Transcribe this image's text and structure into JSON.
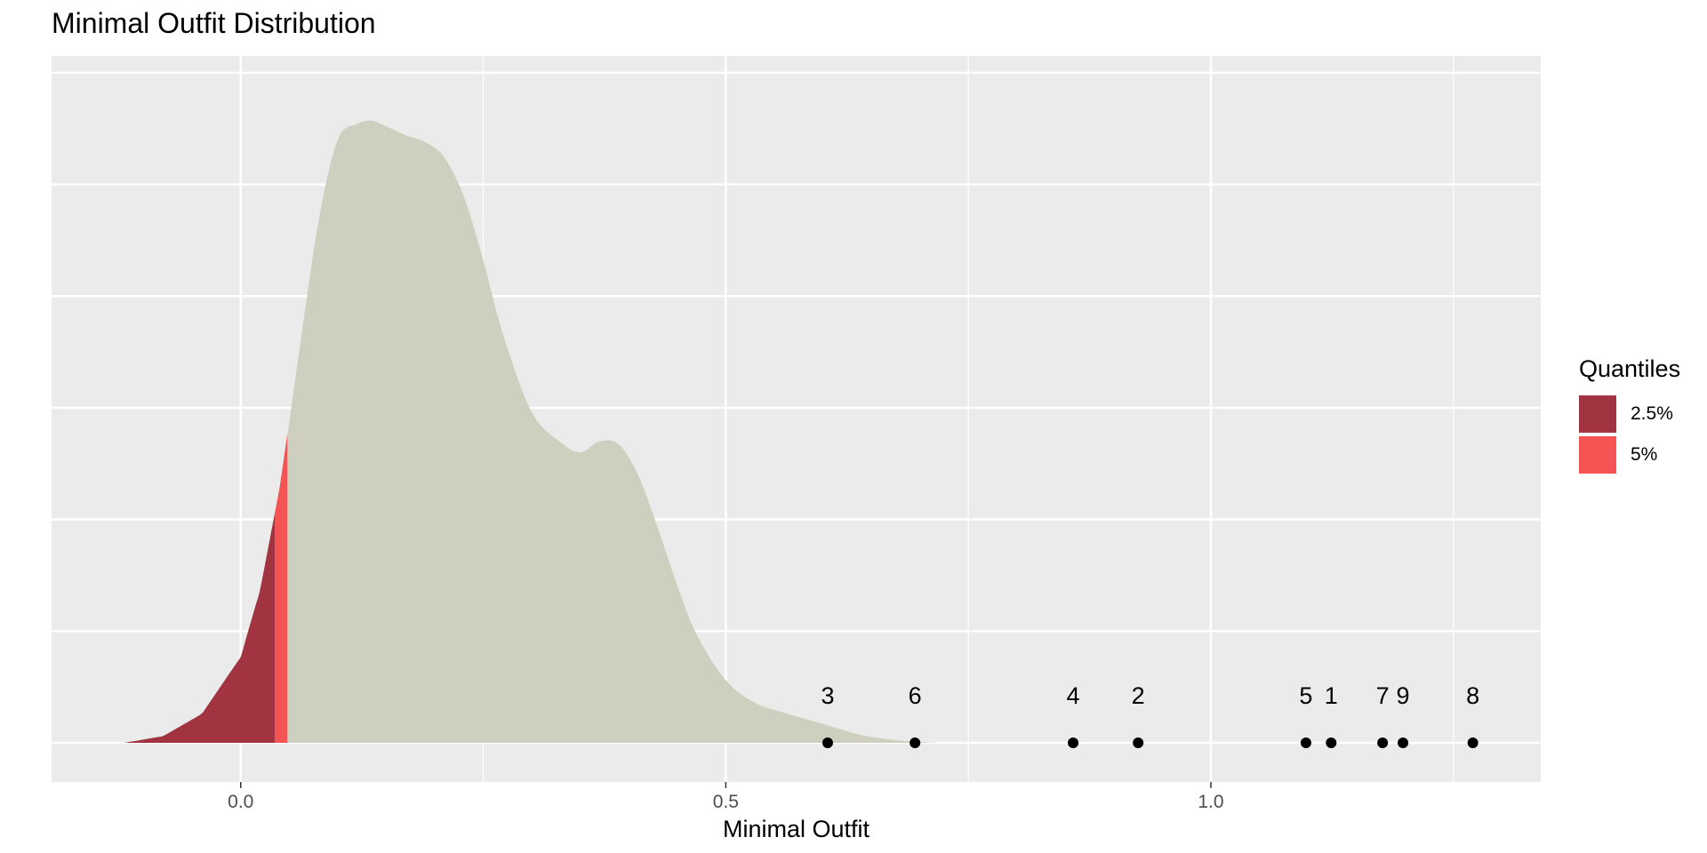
{
  "title": "Minimal Outfit Distribution",
  "legend": {
    "title": "Quantiles",
    "items": [
      {
        "label": "2.5%",
        "color": "#a23341"
      },
      {
        "label": "5%",
        "color": "#f55454"
      }
    ]
  },
  "colors": {
    "panel_background": "#ebebeb",
    "grid": "#ffffff",
    "density_fill": "#cfcfc0",
    "q025_fill": "#a23341",
    "q05_fill": "#f55454",
    "points": "#000000"
  },
  "chart_data": {
    "type": "area",
    "title": "Minimal Outfit Distribution",
    "xlabel": "Minimal Outfit",
    "ylabel": "",
    "xlim": [
      -0.195,
      1.34
    ],
    "ylim": [
      -0.35,
      6.15
    ],
    "x_ticks": [
      0.0,
      0.5,
      1.0
    ],
    "x_tick_labels": [
      "0.0",
      "0.5",
      "1.0"
    ],
    "grid": true,
    "legend_position": "right",
    "quantile_cutoffs": {
      "2.5%": 0.035,
      "5%": 0.048
    },
    "density": {
      "x": [
        -0.12,
        -0.08,
        -0.04,
        0.0,
        0.02,
        0.04,
        0.06,
        0.08,
        0.1,
        0.12,
        0.135,
        0.15,
        0.17,
        0.19,
        0.21,
        0.23,
        0.25,
        0.27,
        0.3,
        0.33,
        0.35,
        0.37,
        0.39,
        0.41,
        0.43,
        0.45,
        0.47,
        0.5,
        0.53,
        0.56,
        0.6,
        0.64,
        0.68,
        0.72
      ],
      "y": [
        0.0,
        0.06,
        0.26,
        0.77,
        1.37,
        2.28,
        3.49,
        4.66,
        5.4,
        5.54,
        5.57,
        5.52,
        5.44,
        5.38,
        5.24,
        4.89,
        4.32,
        3.67,
        2.96,
        2.69,
        2.6,
        2.7,
        2.67,
        2.39,
        1.92,
        1.41,
        0.97,
        0.56,
        0.36,
        0.27,
        0.17,
        0.07,
        0.02,
        0.0
      ]
    },
    "points": [
      {
        "label": "3",
        "x": 0.605
      },
      {
        "label": "6",
        "x": 0.695
      },
      {
        "label": "4",
        "x": 0.858
      },
      {
        "label": "2",
        "x": 0.925
      },
      {
        "label": "5",
        "x": 1.098
      },
      {
        "label": "1",
        "x": 1.124
      },
      {
        "label": "7",
        "x": 1.177
      },
      {
        "label": "9",
        "x": 1.198
      },
      {
        "label": "8",
        "x": 1.27
      }
    ]
  }
}
